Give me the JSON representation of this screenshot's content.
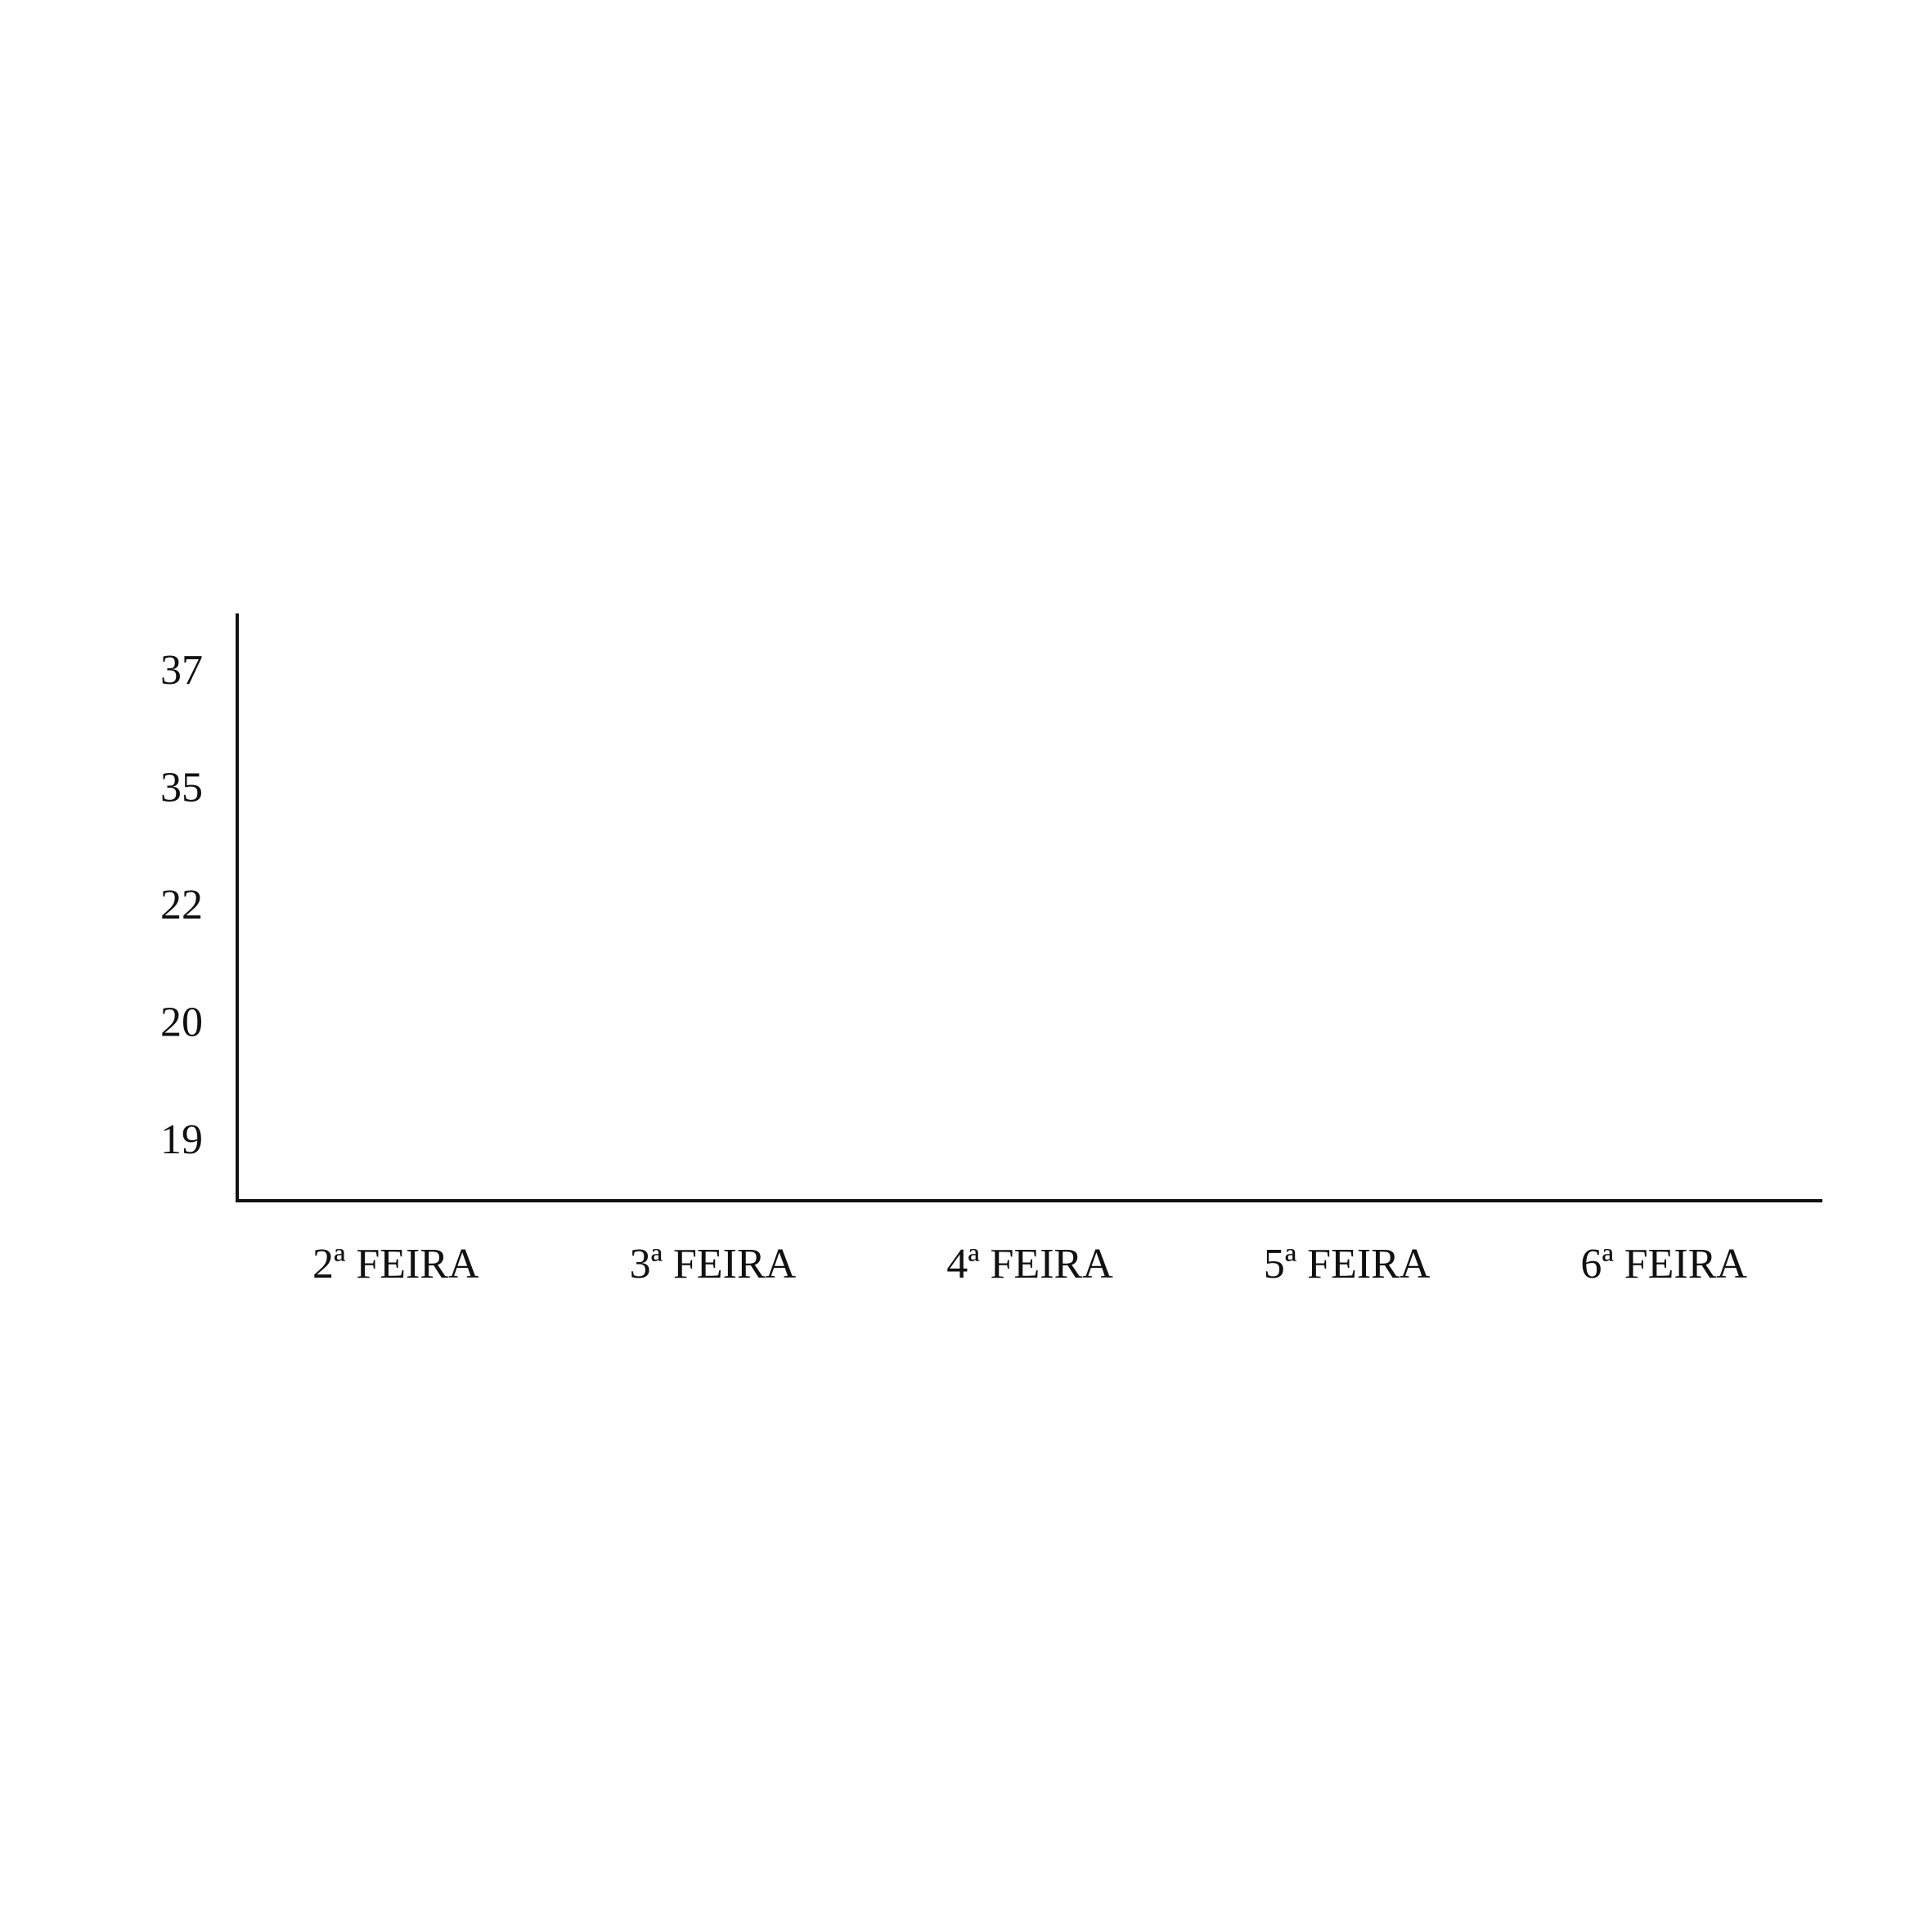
{
  "chart_data": {
    "type": "bar",
    "categories": [
      "2ª FEIRA",
      "3ª FEIRA",
      "4ª FEIRA",
      "5ª FEIRA",
      "6ª FEIRA"
    ],
    "y_categories": [
      19,
      20,
      22,
      35,
      37
    ]
  }
}
